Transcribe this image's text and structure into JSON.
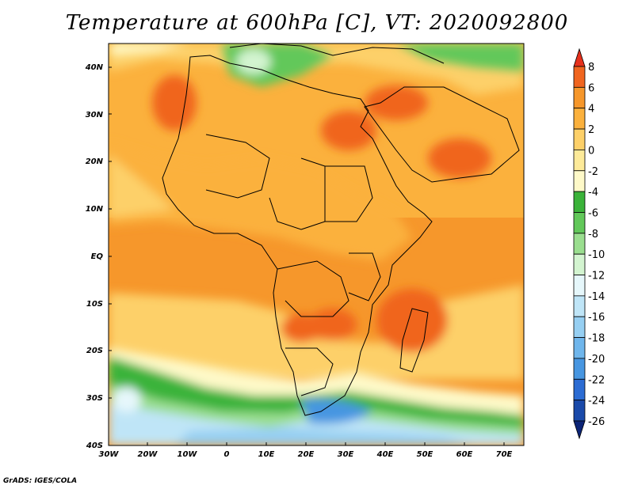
{
  "title": "Temperature at 600hPa [C], VT: 2020092800",
  "credit": "GrADS: IGES/COLA",
  "lat_labels": [
    "40N",
    "30N",
    "20N",
    "10N",
    "EQ",
    "10S",
    "20S",
    "30S",
    "40S"
  ],
  "lon_labels": [
    "30W",
    "20W",
    "10W",
    "0",
    "10E",
    "20E",
    "30E",
    "40E",
    "50E",
    "60E",
    "70E"
  ],
  "colorbar": {
    "labels": [
      "8",
      "6",
      "4",
      "2",
      "0",
      "-2",
      "-4",
      "-6",
      "-8",
      "-10",
      "-12",
      "-14",
      "-16",
      "-18",
      "-20",
      "-22",
      "-24",
      "-26"
    ],
    "colors": [
      "#e6311c",
      "#f0651f",
      "#f6972b",
      "#fbb13d",
      "#fdd069",
      "#fdea99",
      "#fef9c8",
      "#3bb33a",
      "#62c85a",
      "#9ade8f",
      "#d3f4d0",
      "#e6f7fb",
      "#bfe5f7",
      "#96cff2",
      "#6fb6ec",
      "#4796e1",
      "#2c6cd3",
      "#1a4aaa",
      "#0c2477"
    ]
  },
  "map": {
    "lat_range": [
      -40,
      45
    ],
    "lon_range": [
      -30,
      75
    ],
    "field": "Temperature at 600hPa",
    "units": "C"
  }
}
